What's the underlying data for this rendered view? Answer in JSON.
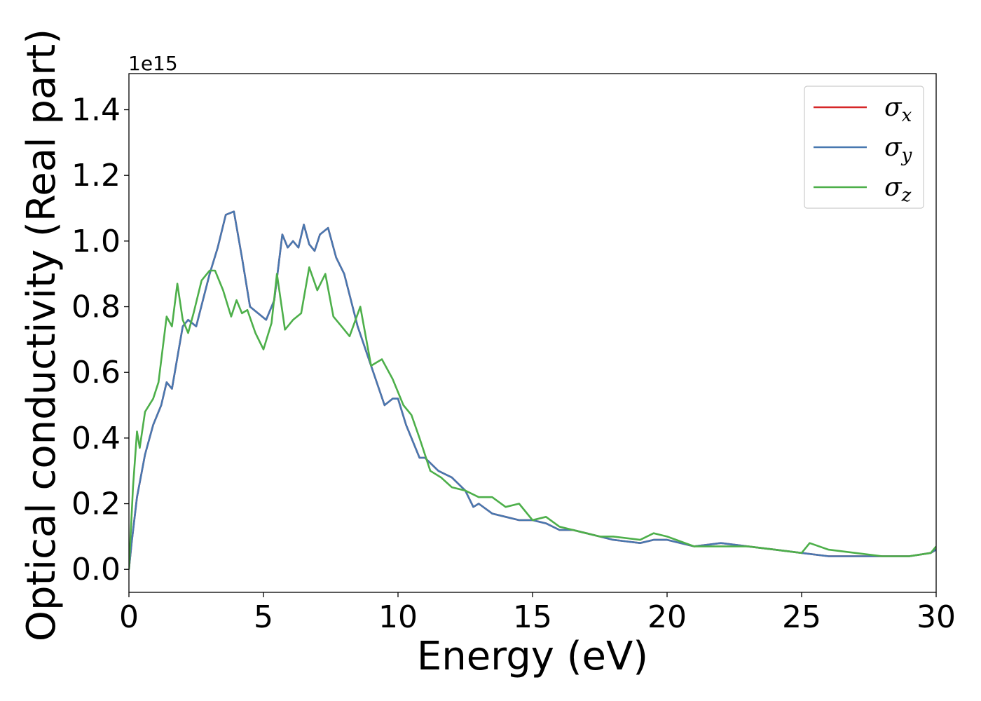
{
  "chart_data": {
    "type": "line",
    "title": "",
    "xlabel": "Energy (eV)",
    "ylabel": "Optical conductivity (Real part)",
    "y_offset_label": "1e15",
    "xlim": [
      0,
      30
    ],
    "ylim": [
      -0.07,
      1.51
    ],
    "xticks": [
      0,
      5,
      10,
      15,
      20,
      25,
      30
    ],
    "xtick_labels": [
      "0",
      "5",
      "10",
      "15",
      "20",
      "25",
      "30"
    ],
    "yticks": [
      0.0,
      0.2,
      0.4,
      0.6,
      0.8,
      1.0,
      1.2,
      1.4
    ],
    "ytick_labels": [
      "0.0",
      "0.2",
      "0.4",
      "0.6",
      "0.8",
      "1.0",
      "1.2",
      "1.4"
    ],
    "grid": false,
    "legend_position": "top-right",
    "series": [
      {
        "name": "σx",
        "base": "σ",
        "sub": "x",
        "color": "#d62728",
        "x": [
          0,
          0.1,
          0.3,
          0.6,
          0.9,
          1.2,
          1.4,
          1.6,
          2.0,
          2.2,
          2.5,
          3.0,
          3.3,
          3.6,
          3.9,
          4.2,
          4.5,
          4.8,
          5.1,
          5.4,
          5.7,
          5.9,
          6.1,
          6.3,
          6.5,
          6.7,
          6.9,
          7.1,
          7.4,
          7.7,
          8.0,
          8.5,
          9.0,
          9.5,
          9.8,
          10.0,
          10.3,
          10.5,
          10.8,
          11.0,
          11.5,
          12.0,
          12.5,
          12.8,
          13.0,
          13.5,
          14.0,
          14.5,
          15.0,
          15.5,
          16.0,
          16.5,
          17.0,
          17.5,
          18.0,
          19.0,
          19.5,
          20.0,
          21.0,
          22.0,
          23.0,
          24.0,
          25.0,
          26.0,
          27.0,
          28.0,
          29.0,
          29.8,
          30.0
        ],
        "y": [
          0.0,
          0.08,
          0.22,
          0.35,
          0.44,
          0.5,
          0.57,
          0.55,
          0.74,
          0.76,
          0.74,
          0.9,
          0.98,
          1.08,
          1.09,
          0.95,
          0.8,
          0.78,
          0.76,
          0.82,
          1.02,
          0.98,
          1.0,
          0.98,
          1.05,
          0.99,
          0.97,
          1.02,
          1.04,
          0.95,
          0.9,
          0.74,
          0.62,
          0.5,
          0.52,
          0.52,
          0.44,
          0.4,
          0.34,
          0.34,
          0.3,
          0.28,
          0.24,
          0.19,
          0.2,
          0.17,
          0.16,
          0.15,
          0.15,
          0.14,
          0.12,
          0.12,
          0.11,
          0.1,
          0.09,
          0.08,
          0.09,
          0.09,
          0.07,
          0.08,
          0.07,
          0.06,
          0.05,
          0.04,
          0.04,
          0.04,
          0.04,
          0.05,
          0.06
        ]
      },
      {
        "name": "σy",
        "base": "σ",
        "sub": "y",
        "color": "#4878b0",
        "x": [
          0,
          0.1,
          0.3,
          0.6,
          0.9,
          1.2,
          1.4,
          1.6,
          2.0,
          2.2,
          2.5,
          3.0,
          3.3,
          3.6,
          3.9,
          4.2,
          4.5,
          4.8,
          5.1,
          5.4,
          5.7,
          5.9,
          6.1,
          6.3,
          6.5,
          6.7,
          6.9,
          7.1,
          7.4,
          7.7,
          8.0,
          8.5,
          9.0,
          9.5,
          9.8,
          10.0,
          10.3,
          10.5,
          10.8,
          11.0,
          11.5,
          12.0,
          12.5,
          12.8,
          13.0,
          13.5,
          14.0,
          14.5,
          15.0,
          15.5,
          16.0,
          16.5,
          17.0,
          17.5,
          18.0,
          19.0,
          19.5,
          20.0,
          21.0,
          22.0,
          23.0,
          24.0,
          25.0,
          26.0,
          27.0,
          28.0,
          29.0,
          29.8,
          30.0
        ],
        "y": [
          0.0,
          0.08,
          0.22,
          0.35,
          0.44,
          0.5,
          0.57,
          0.55,
          0.74,
          0.76,
          0.74,
          0.9,
          0.98,
          1.08,
          1.09,
          0.95,
          0.8,
          0.78,
          0.76,
          0.82,
          1.02,
          0.98,
          1.0,
          0.98,
          1.05,
          0.99,
          0.97,
          1.02,
          1.04,
          0.95,
          0.9,
          0.74,
          0.62,
          0.5,
          0.52,
          0.52,
          0.44,
          0.4,
          0.34,
          0.34,
          0.3,
          0.28,
          0.24,
          0.19,
          0.2,
          0.17,
          0.16,
          0.15,
          0.15,
          0.14,
          0.12,
          0.12,
          0.11,
          0.1,
          0.09,
          0.08,
          0.09,
          0.09,
          0.07,
          0.08,
          0.07,
          0.06,
          0.05,
          0.04,
          0.04,
          0.04,
          0.04,
          0.05,
          0.06
        ]
      },
      {
        "name": "σz",
        "base": "σ",
        "sub": "z",
        "color": "#4daf4a",
        "x": [
          0,
          0.15,
          0.3,
          0.4,
          0.6,
          0.9,
          1.1,
          1.4,
          1.6,
          1.8,
          2.0,
          2.2,
          2.4,
          2.7,
          3.0,
          3.2,
          3.5,
          3.8,
          4.0,
          4.2,
          4.4,
          4.7,
          5.0,
          5.3,
          5.5,
          5.8,
          6.1,
          6.4,
          6.7,
          7.0,
          7.3,
          7.6,
          7.9,
          8.2,
          8.6,
          9.0,
          9.4,
          9.8,
          10.2,
          10.5,
          10.8,
          11.2,
          11.6,
          12.0,
          12.5,
          13.0,
          13.5,
          14.0,
          14.5,
          15.0,
          15.5,
          16.0,
          16.5,
          17.0,
          17.5,
          18.0,
          19.0,
          19.5,
          20.0,
          21.0,
          22.0,
          23.0,
          24.0,
          25.0,
          25.3,
          26.0,
          27.0,
          28.0,
          29.0,
          29.8,
          30.0
        ],
        "y": [
          0.0,
          0.25,
          0.42,
          0.37,
          0.48,
          0.52,
          0.57,
          0.77,
          0.74,
          0.87,
          0.76,
          0.72,
          0.78,
          0.88,
          0.91,
          0.91,
          0.85,
          0.77,
          0.82,
          0.78,
          0.79,
          0.72,
          0.67,
          0.75,
          0.9,
          0.73,
          0.76,
          0.78,
          0.92,
          0.85,
          0.9,
          0.77,
          0.74,
          0.71,
          0.8,
          0.62,
          0.64,
          0.58,
          0.5,
          0.47,
          0.4,
          0.3,
          0.28,
          0.25,
          0.24,
          0.22,
          0.22,
          0.19,
          0.2,
          0.15,
          0.16,
          0.13,
          0.12,
          0.11,
          0.1,
          0.1,
          0.09,
          0.11,
          0.1,
          0.07,
          0.07,
          0.07,
          0.06,
          0.05,
          0.08,
          0.06,
          0.05,
          0.04,
          0.04,
          0.05,
          0.07
        ]
      }
    ]
  }
}
